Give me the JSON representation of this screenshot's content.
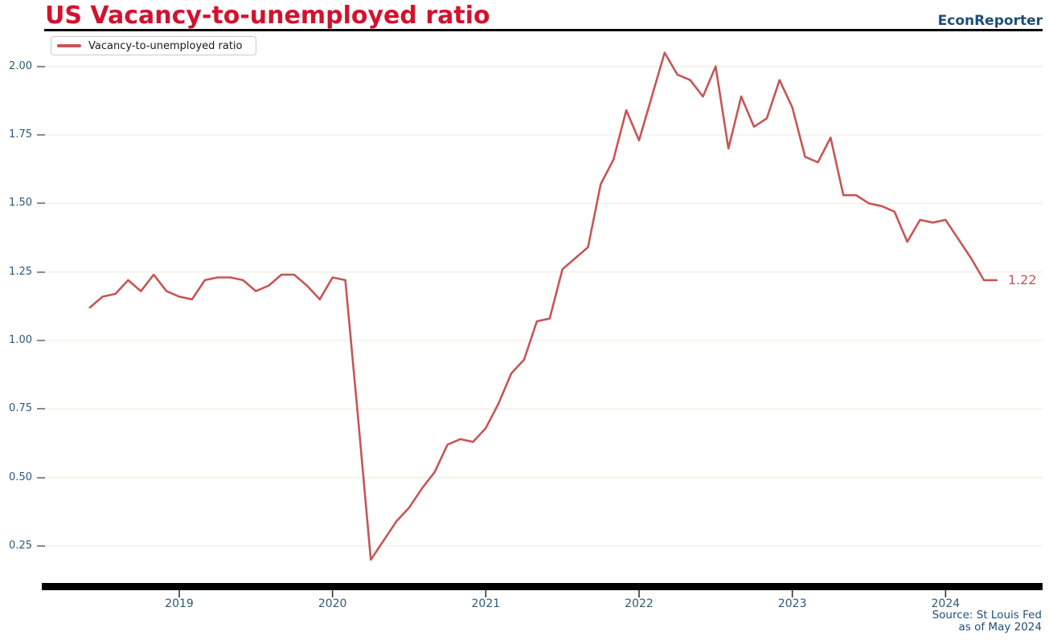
{
  "header": {
    "title": "US Vacancy-to-unemployed ratio",
    "brand": "EconReporter"
  },
  "legend": {
    "label": "Vacancy-to-unemployed ratio"
  },
  "source": {
    "line1": "Source: St Louis Fed",
    "line2": "as of May 2024"
  },
  "colors": {
    "title": "#d2122e",
    "brand": "#1f4e79",
    "line": "#c75556",
    "axis_label": "#2e5878",
    "annotation": "#c6555a",
    "gridline": "#f4f0e5",
    "tick_mark": "#333333"
  },
  "chart_data": {
    "type": "line",
    "title": "US Vacancy-to-unemployed ratio",
    "series_name": "Vacancy-to-unemployed ratio",
    "x_ticks": [
      "2019",
      "2020",
      "2021",
      "2022",
      "2023",
      "2024"
    ],
    "y_ticks": [
      0.25,
      0.5,
      0.75,
      1.0,
      1.25,
      1.5,
      1.75,
      2.0
    ],
    "y_tick_labels": [
      "0.25",
      "0.50",
      "0.75",
      "1.00",
      "1.25",
      "1.50",
      "1.75",
      "2.00"
    ],
    "ylim": [
      0.08,
      2.12
    ],
    "grid": "faint horizontal",
    "legend_position": "upper left",
    "end_annotation": "1.22",
    "points": [
      [
        "2018-06",
        1.12
      ],
      [
        "2018-07",
        1.16
      ],
      [
        "2018-08",
        1.17
      ],
      [
        "2018-09",
        1.22
      ],
      [
        "2018-10",
        1.18
      ],
      [
        "2018-11",
        1.24
      ],
      [
        "2018-12",
        1.18
      ],
      [
        "2019-01",
        1.16
      ],
      [
        "2019-02",
        1.15
      ],
      [
        "2019-03",
        1.22
      ],
      [
        "2019-04",
        1.23
      ],
      [
        "2019-05",
        1.23
      ],
      [
        "2019-06",
        1.22
      ],
      [
        "2019-07",
        1.18
      ],
      [
        "2019-08",
        1.2
      ],
      [
        "2019-09",
        1.24
      ],
      [
        "2019-10",
        1.24
      ],
      [
        "2019-11",
        1.2
      ],
      [
        "2019-12",
        1.15
      ],
      [
        "2020-01",
        1.23
      ],
      [
        "2020-02",
        1.22
      ],
      [
        "2020-03",
        0.72
      ],
      [
        "2020-04",
        0.2
      ],
      [
        "2020-05",
        0.27
      ],
      [
        "2020-06",
        0.34
      ],
      [
        "2020-07",
        0.39
      ],
      [
        "2020-08",
        0.46
      ],
      [
        "2020-09",
        0.52
      ],
      [
        "2020-10",
        0.62
      ],
      [
        "2020-11",
        0.64
      ],
      [
        "2020-12",
        0.63
      ],
      [
        "2021-01",
        0.68
      ],
      [
        "2021-02",
        0.77
      ],
      [
        "2021-03",
        0.88
      ],
      [
        "2021-04",
        0.93
      ],
      [
        "2021-05",
        1.07
      ],
      [
        "2021-06",
        1.08
      ],
      [
        "2021-07",
        1.26
      ],
      [
        "2021-08",
        1.3
      ],
      [
        "2021-09",
        1.34
      ],
      [
        "2021-10",
        1.57
      ],
      [
        "2021-11",
        1.66
      ],
      [
        "2021-12",
        1.84
      ],
      [
        "2022-01",
        1.73
      ],
      [
        "2022-02",
        1.89
      ],
      [
        "2022-03",
        2.05
      ],
      [
        "2022-04",
        1.97
      ],
      [
        "2022-05",
        1.95
      ],
      [
        "2022-06",
        1.89
      ],
      [
        "2022-07",
        2.0
      ],
      [
        "2022-08",
        1.7
      ],
      [
        "2022-09",
        1.89
      ],
      [
        "2022-10",
        1.78
      ],
      [
        "2022-11",
        1.81
      ],
      [
        "2022-12",
        1.95
      ],
      [
        "2023-01",
        1.85
      ],
      [
        "2023-02",
        1.67
      ],
      [
        "2023-03",
        1.65
      ],
      [
        "2023-04",
        1.74
      ],
      [
        "2023-05",
        1.53
      ],
      [
        "2023-06",
        1.53
      ],
      [
        "2023-07",
        1.5
      ],
      [
        "2023-08",
        1.49
      ],
      [
        "2023-09",
        1.47
      ],
      [
        "2023-10",
        1.36
      ],
      [
        "2023-11",
        1.44
      ],
      [
        "2023-12",
        1.43
      ],
      [
        "2024-01",
        1.44
      ],
      [
        "2024-02",
        1.37
      ],
      [
        "2024-03",
        1.3
      ],
      [
        "2024-04",
        1.22
      ],
      [
        "2024-05",
        1.22
      ]
    ]
  }
}
